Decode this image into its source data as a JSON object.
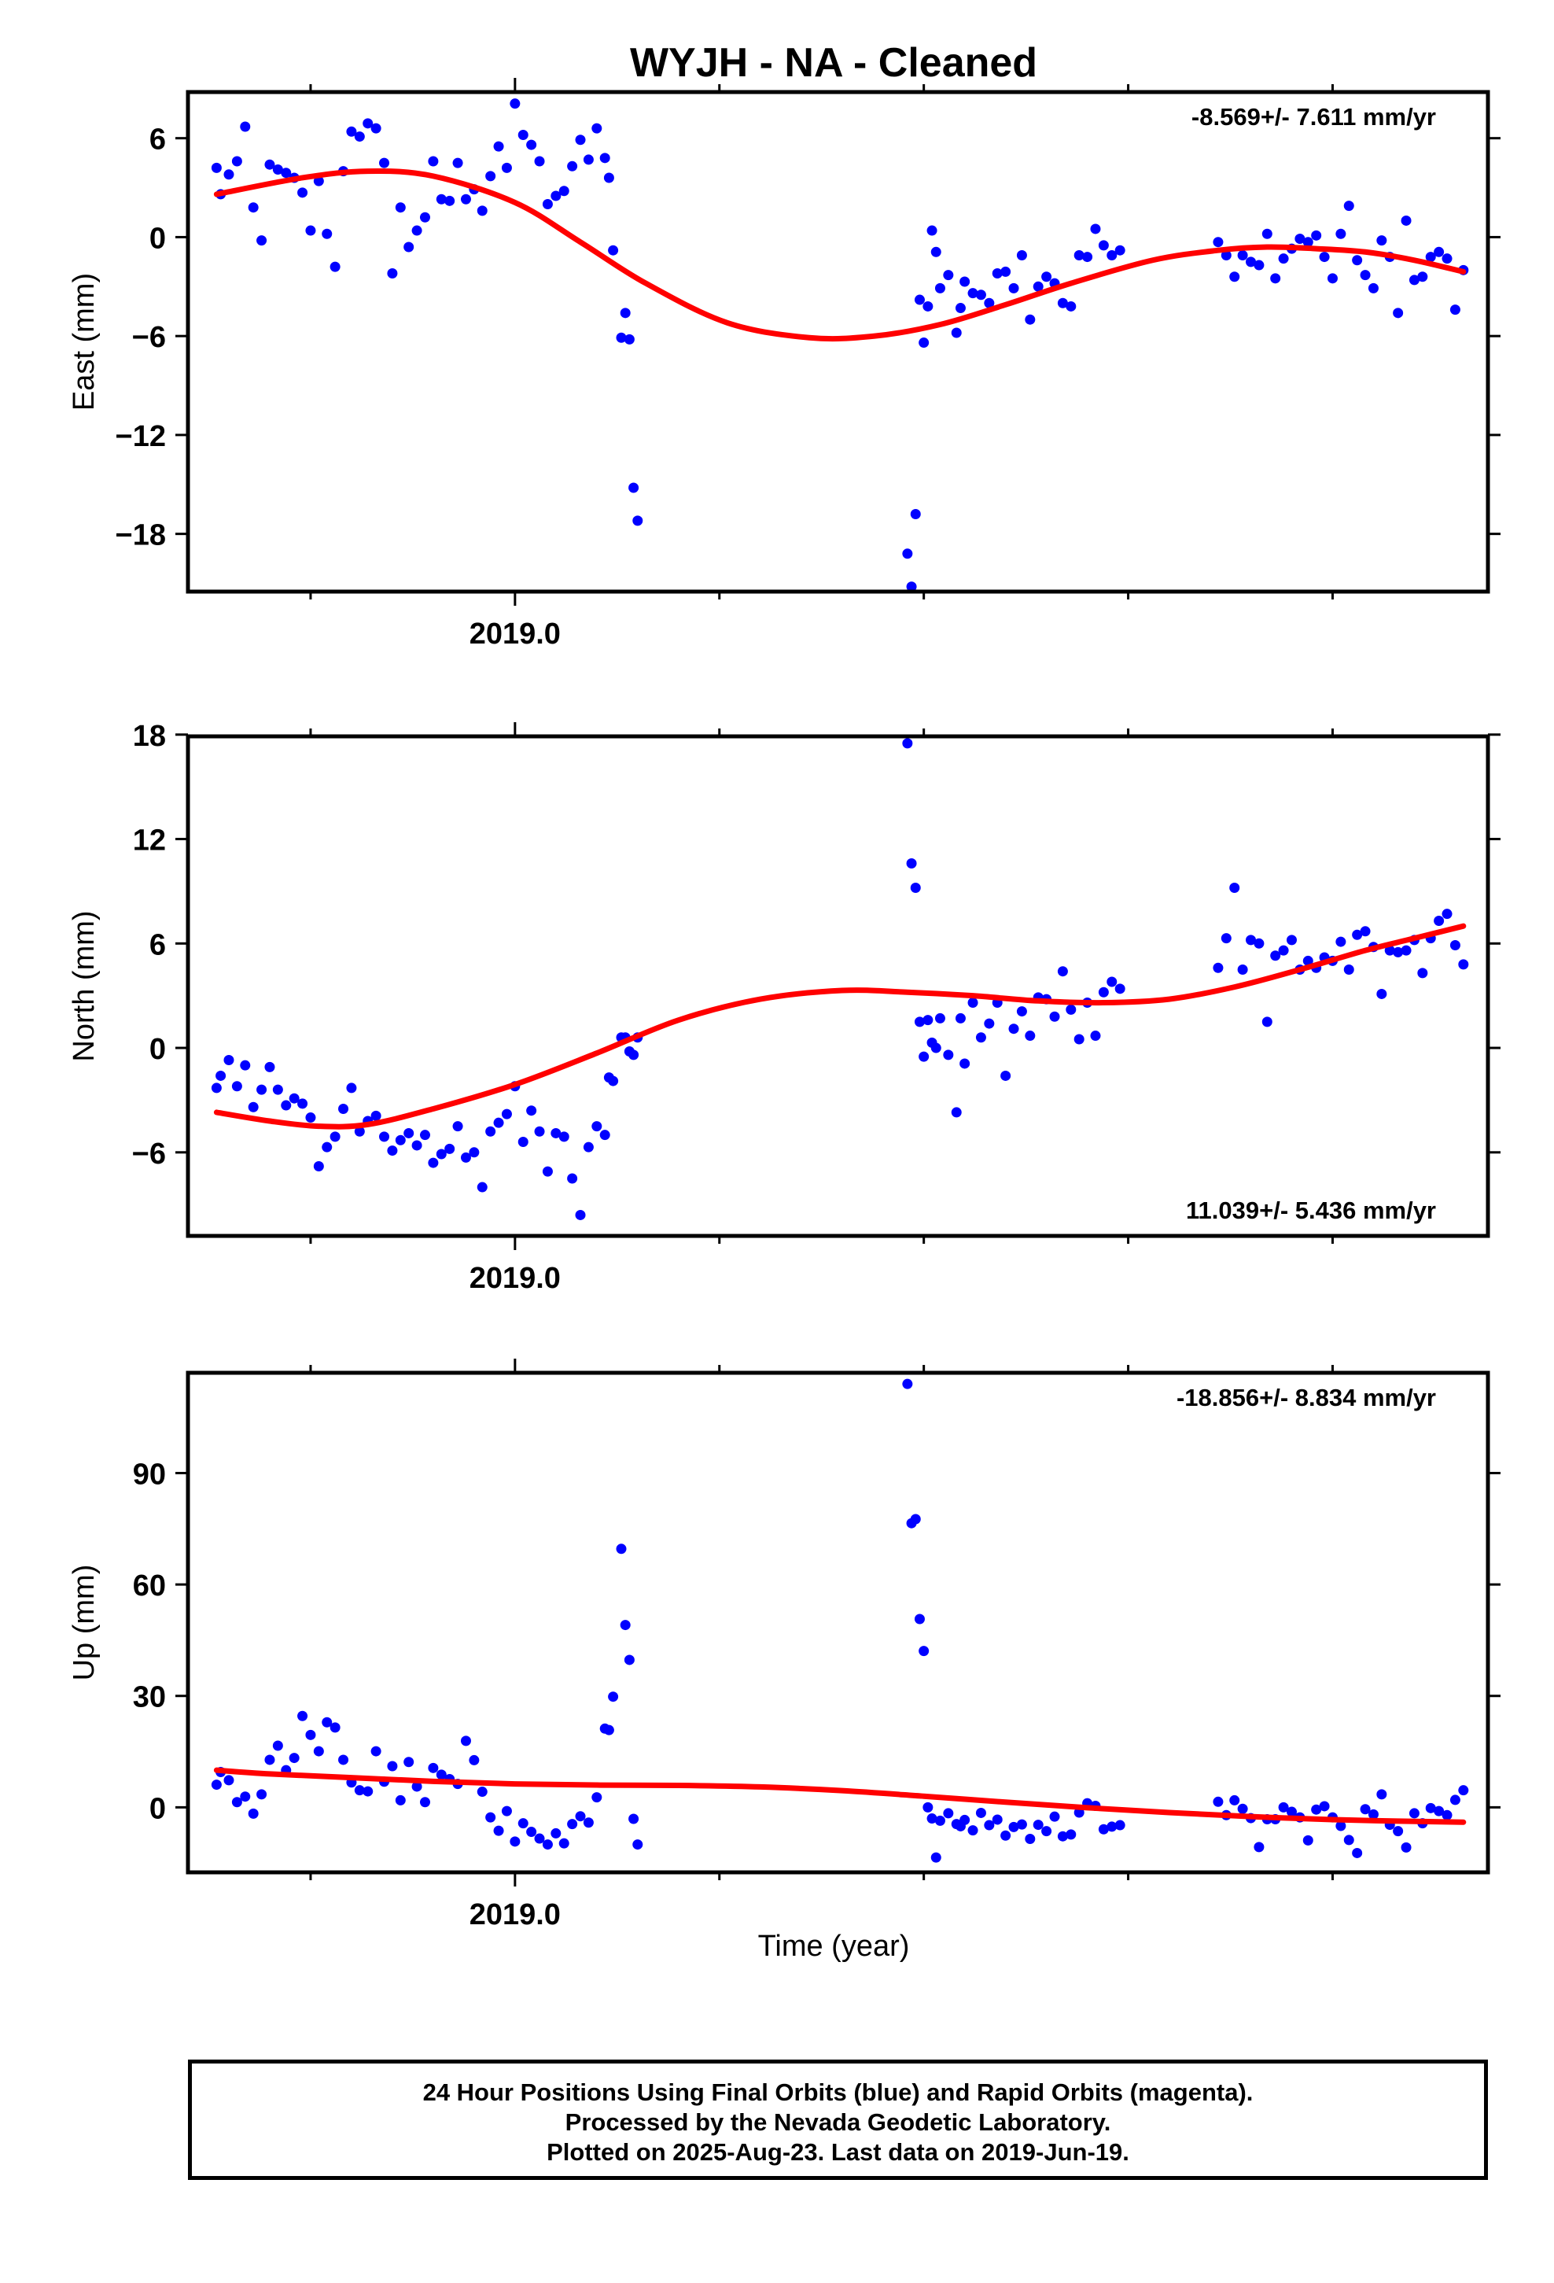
{
  "title": "WYJH  - NA - Cleaned",
  "xlabel": "Time (year)",
  "footer": {
    "line1": "24 Hour Positions Using Final Orbits (blue) and Rapid Orbits (magenta).",
    "line2": "Processed by the Nevada Geodetic Laboratory.",
    "line3": "Plotted on 2025-Aug-23. Last data on 2019-Jun-19."
  },
  "colors": {
    "points": "#0000ff",
    "fit": "#ff0000",
    "frame": "#000000"
  },
  "chart_data": [
    {
      "type": "scatter",
      "name": "east",
      "ylabel": "East (mm)",
      "rate_text": "-8.569+/- 7.611 mm/yr",
      "xlim": [
        2018.6,
        2020.19
      ],
      "ylim": [
        -21.5,
        8.8
      ],
      "yticks": [
        6,
        0,
        -6,
        -12,
        -18
      ],
      "xticks": [
        2019.0
      ],
      "fit": {
        "x": [
          2018.635,
          2018.74,
          2018.82,
          2018.9,
          2019.0,
          2019.08,
          2019.16,
          2019.26,
          2019.36,
          2019.44,
          2019.52,
          2019.6,
          2019.68,
          2019.78,
          2019.86,
          2019.92,
          2019.98,
          2020.04,
          2020.1,
          2020.16
        ],
        "y": [
          2.6,
          3.6,
          4.0,
          3.7,
          2.1,
          -0.3,
          -2.8,
          -5.2,
          -6.1,
          -6.0,
          -5.3,
          -4.1,
          -2.8,
          -1.4,
          -0.8,
          -0.6,
          -0.7,
          -0.9,
          -1.4,
          -2.1
        ]
      },
      "points": {
        "x": [
          2018.635,
          2018.64,
          2018.65,
          2018.66,
          2018.67,
          2018.68,
          2018.69,
          2018.7,
          2018.71,
          2018.72,
          2018.73,
          2018.74,
          2018.75,
          2018.76,
          2018.77,
          2018.78,
          2018.79,
          2018.8,
          2018.81,
          2018.82,
          2018.83,
          2018.84,
          2018.85,
          2018.86,
          2018.87,
          2018.88,
          2018.89,
          2018.9,
          2018.91,
          2018.92,
          2018.93,
          2018.94,
          2018.95,
          2018.96,
          2018.97,
          2018.98,
          2018.99,
          2019.0,
          2019.01,
          2019.02,
          2019.03,
          2019.04,
          2019.05,
          2019.06,
          2019.07,
          2019.08,
          2019.09,
          2019.1,
          2019.11,
          2019.115,
          2019.12,
          2019.13,
          2019.135,
          2019.14,
          2019.145,
          2019.15,
          2019.48,
          2019.485,
          2019.49,
          2019.495,
          2019.5,
          2019.505,
          2019.51,
          2019.515,
          2019.52,
          2019.53,
          2019.54,
          2019.545,
          2019.55,
          2019.56,
          2019.57,
          2019.58,
          2019.59,
          2019.6,
          2019.61,
          2019.62,
          2019.63,
          2019.64,
          2019.65,
          2019.66,
          2019.67,
          2019.68,
          2019.69,
          2019.7,
          2019.71,
          2019.72,
          2019.73,
          2019.74,
          2019.86,
          2019.87,
          2019.88,
          2019.89,
          2019.9,
          2019.91,
          2019.92,
          2019.93,
          2019.94,
          2019.95,
          2019.96,
          2019.97,
          2019.98,
          2019.99,
          2020.0,
          2020.01,
          2020.02,
          2020.03,
          2020.04,
          2020.05,
          2020.06,
          2020.07,
          2020.08,
          2020.09,
          2020.1,
          2020.11,
          2020.12,
          2020.13,
          2020.14,
          2020.15,
          2020.16
        ],
        "y": [
          4.2,
          2.6,
          3.8,
          4.6,
          6.7,
          1.8,
          -0.2,
          4.4,
          4.1,
          3.9,
          3.6,
          2.7,
          0.4,
          3.4,
          0.2,
          -1.8,
          4.0,
          6.4,
          6.1,
          6.9,
          6.6,
          4.5,
          -2.2,
          1.8,
          -0.6,
          0.4,
          1.2,
          4.6,
          2.3,
          2.2,
          4.5,
          2.3,
          2.9,
          1.6,
          3.7,
          5.5,
          4.2,
          8.1,
          6.2,
          5.6,
          4.6,
          2.0,
          2.5,
          2.8,
          4.3,
          5.9,
          4.7,
          6.6,
          4.8,
          3.6,
          -0.8,
          -6.1,
          -4.6,
          -6.2,
          -15.2,
          -17.2,
          -19.2,
          -21.2,
          -16.8,
          -3.8,
          -6.4,
          -4.2,
          0.4,
          -0.9,
          -3.1,
          -2.3,
          -5.8,
          -4.3,
          -2.7,
          -3.4,
          -3.5,
          -4.0,
          -2.2,
          -2.1,
          -3.1,
          -1.1,
          -5.0,
          -3.0,
          -2.4,
          -2.8,
          -4.0,
          -4.2,
          -1.1,
          -1.2,
          0.5,
          -0.5,
          -1.1,
          -0.8,
          -0.3,
          -1.1,
          -2.4,
          -1.1,
          -1.5,
          -1.7,
          0.2,
          -2.5,
          -1.3,
          -0.7,
          -0.1,
          -0.3,
          0.1,
          -1.2,
          -2.5,
          0.2,
          1.9,
          -1.4,
          -2.3,
          -3.1,
          -0.2,
          -1.2,
          -4.6,
          1.0,
          -2.6,
          -2.4,
          -1.2,
          -0.9,
          -1.3,
          -4.4,
          -2.0
        ]
      }
    },
    {
      "type": "scatter",
      "name": "north",
      "ylabel": "North (mm)",
      "rate_text": "11.039+/- 5.436 mm/yr",
      "xlim": [
        2018.6,
        2020.19
      ],
      "ylim": [
        -10.8,
        17.9
      ],
      "yticks": [
        18,
        12,
        6,
        0,
        -6
      ],
      "xticks": [
        2019.0
      ],
      "fit": {
        "x": [
          2018.635,
          2018.7,
          2018.76,
          2018.82,
          2018.9,
          2019.0,
          2019.1,
          2019.2,
          2019.3,
          2019.4,
          2019.48,
          2019.56,
          2019.64,
          2019.72,
          2019.8,
          2019.88,
          2019.96,
          2020.04,
          2020.1,
          2020.16
        ],
        "y": [
          -3.7,
          -4.2,
          -4.5,
          -4.4,
          -3.5,
          -2.1,
          -0.3,
          1.6,
          2.8,
          3.3,
          3.2,
          3.0,
          2.7,
          2.6,
          2.8,
          3.5,
          4.5,
          5.6,
          6.3,
          7.0
        ]
      },
      "points": {
        "x": [
          2018.635,
          2018.64,
          2018.65,
          2018.66,
          2018.67,
          2018.68,
          2018.69,
          2018.7,
          2018.71,
          2018.72,
          2018.73,
          2018.74,
          2018.75,
          2018.76,
          2018.77,
          2018.78,
          2018.79,
          2018.8,
          2018.81,
          2018.82,
          2018.83,
          2018.84,
          2018.85,
          2018.86,
          2018.87,
          2018.88,
          2018.89,
          2018.9,
          2018.91,
          2018.92,
          2018.93,
          2018.94,
          2018.95,
          2018.96,
          2018.97,
          2018.98,
          2018.99,
          2019.0,
          2019.01,
          2019.02,
          2019.03,
          2019.04,
          2019.05,
          2019.06,
          2019.07,
          2019.08,
          2019.09,
          2019.1,
          2019.11,
          2019.115,
          2019.12,
          2019.13,
          2019.135,
          2019.14,
          2019.145,
          2019.15,
          2019.48,
          2019.485,
          2019.49,
          2019.495,
          2019.5,
          2019.505,
          2019.51,
          2019.515,
          2019.52,
          2019.53,
          2019.54,
          2019.545,
          2019.55,
          2019.56,
          2019.57,
          2019.58,
          2019.59,
          2019.6,
          2019.61,
          2019.62,
          2019.63,
          2019.64,
          2019.65,
          2019.66,
          2019.67,
          2019.68,
          2019.69,
          2019.7,
          2019.71,
          2019.72,
          2019.73,
          2019.74,
          2019.86,
          2019.87,
          2019.88,
          2019.89,
          2019.9,
          2019.91,
          2019.92,
          2019.93,
          2019.94,
          2019.95,
          2019.96,
          2019.97,
          2019.98,
          2019.99,
          2020.0,
          2020.01,
          2020.02,
          2020.03,
          2020.04,
          2020.05,
          2020.06,
          2020.07,
          2020.08,
          2020.09,
          2020.1,
          2020.11,
          2020.12,
          2020.13,
          2020.14,
          2020.15,
          2020.16
        ],
        "y": [
          -2.3,
          -1.6,
          -0.7,
          -2.2,
          -1.0,
          -3.4,
          -2.4,
          -1.1,
          -2.4,
          -3.3,
          -2.9,
          -3.2,
          -4.0,
          -6.8,
          -5.7,
          -5.1,
          -3.5,
          -2.3,
          -4.8,
          -4.2,
          -3.9,
          -5.1,
          -5.9,
          -5.3,
          -4.9,
          -5.6,
          -5.0,
          -6.6,
          -6.1,
          -5.8,
          -4.5,
          -6.3,
          -6.0,
          -8.0,
          -4.8,
          -4.3,
          -3.8,
          -2.2,
          -5.4,
          -3.6,
          -4.8,
          -7.1,
          -4.9,
          -5.1,
          -7.5,
          -9.6,
          -5.7,
          -4.5,
          -5.0,
          -1.7,
          -1.9,
          0.6,
          0.6,
          -0.2,
          -0.4,
          0.6,
          17.5,
          10.6,
          9.2,
          1.5,
          -0.5,
          1.6,
          0.3,
          0.0,
          1.7,
          -0.4,
          -3.7,
          1.7,
          -0.9,
          2.6,
          0.6,
          1.4,
          2.6,
          -1.6,
          1.1,
          2.1,
          0.7,
          2.9,
          2.8,
          1.8,
          4.4,
          2.2,
          0.5,
          2.6,
          0.7,
          3.2,
          3.8,
          3.4,
          4.6,
          6.3,
          9.2,
          4.5,
          6.2,
          6.0,
          1.5,
          5.3,
          5.6,
          6.2,
          4.5,
          5.0,
          4.6,
          5.2,
          5.0,
          6.1,
          4.5,
          6.5,
          6.7,
          5.8,
          3.1,
          5.6,
          5.5,
          5.6,
          6.2,
          4.3,
          6.3,
          7.3,
          7.7,
          5.9,
          4.8
        ]
      }
    },
    {
      "type": "scatter",
      "name": "up",
      "ylabel": "Up (mm)",
      "rate_text": "-18.856+/- 8.834 mm/yr",
      "xlim": [
        2018.6,
        2020.19
      ],
      "ylim": [
        -17.5,
        117
      ],
      "yticks": [
        90,
        60,
        30,
        0
      ],
      "xticks": [
        2019.0
      ],
      "fit": {
        "x": [
          2018.635,
          2018.7,
          2018.8,
          2018.9,
          2019.0,
          2019.1,
          2019.2,
          2019.3,
          2019.4,
          2019.5,
          2019.6,
          2019.7,
          2019.8,
          2019.9,
          2020.0,
          2020.08,
          2020.16
        ],
        "y": [
          10.0,
          9.0,
          8.0,
          7.0,
          6.3,
          6.0,
          5.9,
          5.5,
          4.5,
          3.0,
          1.4,
          -0.1,
          -1.4,
          -2.5,
          -3.3,
          -3.7,
          -4.0
        ]
      },
      "points": {
        "x": [
          2018.635,
          2018.64,
          2018.65,
          2018.66,
          2018.67,
          2018.68,
          2018.69,
          2018.7,
          2018.71,
          2018.72,
          2018.73,
          2018.74,
          2018.75,
          2018.76,
          2018.77,
          2018.78,
          2018.79,
          2018.8,
          2018.81,
          2018.82,
          2018.83,
          2018.84,
          2018.85,
          2018.86,
          2018.87,
          2018.88,
          2018.89,
          2018.9,
          2018.91,
          2018.92,
          2018.93,
          2018.94,
          2018.95,
          2018.96,
          2018.97,
          2018.98,
          2018.99,
          2019.0,
          2019.01,
          2019.02,
          2019.03,
          2019.04,
          2019.05,
          2019.06,
          2019.07,
          2019.08,
          2019.09,
          2019.1,
          2019.11,
          2019.115,
          2019.12,
          2019.13,
          2019.135,
          2019.14,
          2019.145,
          2019.15,
          2019.48,
          2019.485,
          2019.49,
          2019.495,
          2019.5,
          2019.505,
          2019.51,
          2019.515,
          2019.52,
          2019.53,
          2019.54,
          2019.545,
          2019.55,
          2019.56,
          2019.57,
          2019.58,
          2019.59,
          2019.6,
          2019.61,
          2019.62,
          2019.63,
          2019.64,
          2019.65,
          2019.66,
          2019.67,
          2019.68,
          2019.69,
          2019.7,
          2019.71,
          2019.72,
          2019.73,
          2019.74,
          2019.86,
          2019.87,
          2019.88,
          2019.89,
          2019.9,
          2019.91,
          2019.92,
          2019.93,
          2019.94,
          2019.95,
          2019.96,
          2019.97,
          2019.98,
          2019.99,
          2020.0,
          2020.01,
          2020.02,
          2020.03,
          2020.04,
          2020.05,
          2020.06,
          2020.07,
          2020.08,
          2020.09,
          2020.1,
          2020.11,
          2020.12,
          2020.13,
          2020.14,
          2020.15,
          2020.16
        ],
        "y": [
          6.1,
          9.5,
          7.3,
          1.4,
          2.9,
          -1.7,
          3.5,
          12.8,
          16.6,
          10.0,
          13.3,
          24.6,
          19.5,
          15.1,
          22.9,
          21.5,
          12.8,
          6.7,
          4.6,
          4.3,
          15.1,
          6.9,
          11.1,
          1.9,
          12.2,
          5.6,
          1.4,
          10.6,
          8.8,
          7.6,
          6.3,
          17.9,
          12.7,
          4.2,
          -2.7,
          -6.3,
          -1.0,
          -9.2,
          -4.3,
          -6.6,
          -8.4,
          -10.0,
          -7.0,
          -9.7,
          -4.5,
          -2.4,
          -4.1,
          2.7,
          21.2,
          20.8,
          29.8,
          69.6,
          49.1,
          39.7,
          -3.1,
          -10.0,
          114.0,
          76.5,
          77.6,
          50.7,
          42.1,
          0.0,
          -3.0,
          -13.5,
          -3.6,
          -1.6,
          -4.5,
          -5.1,
          -3.4,
          -6.2,
          -1.5,
          -4.8,
          -3.3,
          -7.6,
          -5.3,
          -4.6,
          -8.5,
          -4.7,
          -6.4,
          -2.5,
          -7.8,
          -7.3,
          -1.4,
          1.1,
          0.4,
          -5.9,
          -5.2,
          -4.8,
          1.5,
          -2.1,
          1.9,
          -0.4,
          -2.9,
          -10.7,
          -3.2,
          -3.2,
          0.0,
          -1.2,
          -2.7,
          -8.9,
          -0.6,
          0.3,
          -2.7,
          -5.0,
          -8.8,
          -12.3,
          -0.5,
          -1.9,
          3.5,
          -4.7,
          -6.4,
          -10.8,
          -1.6,
          -4.3,
          -0.2,
          -1.0,
          -2.1,
          2.0,
          4.6
        ]
      }
    }
  ]
}
